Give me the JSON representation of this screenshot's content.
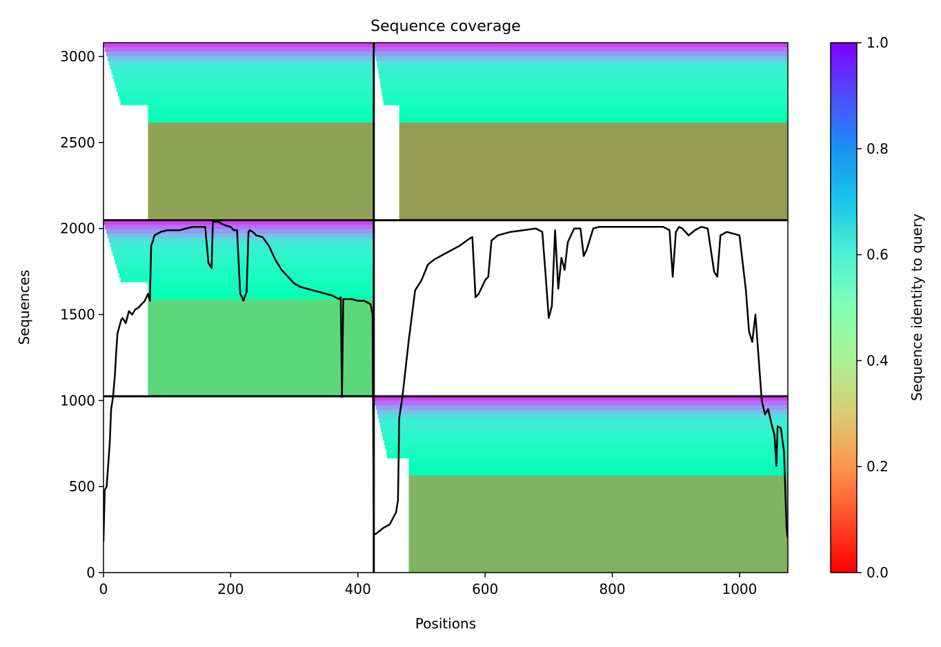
{
  "chart_data": {
    "type": "heatmap",
    "title": "Sequence coverage",
    "xlabel": "Positions",
    "ylabel": "Sequences",
    "xlim": [
      0,
      1076
    ],
    "ylim": [
      0,
      3080
    ],
    "xticks": [
      0,
      200,
      400,
      600,
      800,
      1000
    ],
    "yticks": [
      0,
      500,
      1000,
      1500,
      2000,
      2500,
      3000
    ],
    "grid": false,
    "colorbar": {
      "label": "Sequence identity to query",
      "colormap": "rainbow_r",
      "range": [
        0.0,
        1.0
      ],
      "ticks": [
        "0.0",
        "0.2",
        "0.4",
        "0.6",
        "0.8",
        "1.0"
      ]
    },
    "block_boundaries": {
      "x": [
        425
      ],
      "y": [
        1025,
        2048
      ]
    },
    "blocks": [
      {
        "x": [
          0,
          425
        ],
        "y": [
          2048,
          3080
        ],
        "identity_top": 0.92,
        "identity_bottom": 0.22,
        "coverage_start": 70
      },
      {
        "x": [
          425,
          1076
        ],
        "y": [
          2048,
          3080
        ],
        "identity_top": 0.92,
        "identity_bottom": 0.21,
        "coverage_start": 465
      },
      {
        "x": [
          0,
          425
        ],
        "y": [
          1025,
          2048
        ],
        "identity_top": 0.92,
        "identity_bottom": 0.32,
        "coverage_start": 70
      },
      {
        "x": [
          425,
          1076
        ],
        "y": [
          1025,
          2048
        ],
        "identity_top": null,
        "identity_bottom": null,
        "coverage_start": null
      },
      {
        "x": [
          0,
          425
        ],
        "y": [
          0,
          1025
        ],
        "identity_top": null,
        "identity_bottom": null,
        "coverage_start": null
      },
      {
        "x": [
          425,
          1076
        ],
        "y": [
          0,
          1025
        ],
        "identity_top": 0.92,
        "identity_bottom": 0.25,
        "coverage_start": 480
      }
    ],
    "series": [
      {
        "x": [
          0,
          2,
          5,
          10,
          12,
          15,
          18,
          20,
          22,
          25,
          28,
          30,
          35,
          40,
          45,
          50,
          55,
          60,
          65,
          70,
          73,
          75,
          78,
          80,
          90,
          100,
          110,
          120,
          130,
          140,
          150,
          160,
          165,
          170,
          172,
          175,
          180,
          185,
          190,
          200,
          205,
          210,
          215,
          218,
          220,
          225,
          228,
          230,
          235,
          240,
          250,
          260,
          270,
          280,
          290,
          300,
          310,
          320,
          330,
          340,
          350,
          360,
          370,
          373,
          375,
          377,
          380,
          390,
          400,
          410,
          420,
          423,
          425,
          428,
          430,
          440,
          450,
          460,
          463,
          465,
          470,
          480,
          490,
          500,
          510,
          520,
          540,
          560,
          575,
          580,
          585,
          590,
          600,
          605,
          610,
          620,
          640,
          660,
          680,
          690,
          695,
          700,
          705,
          710,
          715,
          720,
          725,
          730,
          740,
          750,
          755,
          760,
          770,
          780,
          800,
          830,
          860,
          880,
          890,
          895,
          900,
          905,
          910,
          920,
          930,
          940,
          950,
          960,
          965,
          970,
          980,
          990,
          1000,
          1010,
          1015,
          1020,
          1025,
          1030,
          1035,
          1040,
          1045,
          1050,
          1055,
          1058,
          1060,
          1065,
          1070,
          1074,
          1076
        ],
        "y": [
          180,
          480,
          500,
          760,
          950,
          1020,
          1150,
          1280,
          1390,
          1430,
          1470,
          1480,
          1450,
          1520,
          1500,
          1530,
          1540,
          1560,
          1580,
          1620,
          1580,
          1900,
          1930,
          1960,
          1980,
          1990,
          1990,
          1990,
          2000,
          2010,
          2010,
          2010,
          1800,
          1770,
          2040,
          2040,
          2040,
          2030,
          2020,
          2010,
          1990,
          1990,
          1620,
          1600,
          1580,
          1630,
          1980,
          1990,
          1980,
          1960,
          1950,
          1900,
          1820,
          1760,
          1720,
          1680,
          1660,
          1650,
          1640,
          1630,
          1620,
          1610,
          1590,
          1600,
          1020,
          1590,
          1590,
          1590,
          1580,
          1580,
          1560,
          1500,
          220,
          225,
          230,
          260,
          280,
          350,
          420,
          900,
          1020,
          1350,
          1640,
          1700,
          1790,
          1820,
          1860,
          1900,
          1940,
          1950,
          1600,
          1620,
          1700,
          1720,
          1930,
          1960,
          1980,
          1990,
          2000,
          1980,
          1740,
          1480,
          1550,
          1990,
          1650,
          1830,
          1760,
          1920,
          2000,
          2000,
          1840,
          1880,
          2000,
          2010,
          2010,
          2010,
          2010,
          2010,
          1990,
          1720,
          1980,
          2010,
          2000,
          1960,
          1990,
          2010,
          2000,
          1750,
          1720,
          1960,
          1980,
          1970,
          1960,
          1640,
          1400,
          1340,
          1500,
          1250,
          1000,
          920,
          950,
          870,
          800,
          620,
          850,
          840,
          700,
          250,
          200
        ]
      }
    ]
  }
}
